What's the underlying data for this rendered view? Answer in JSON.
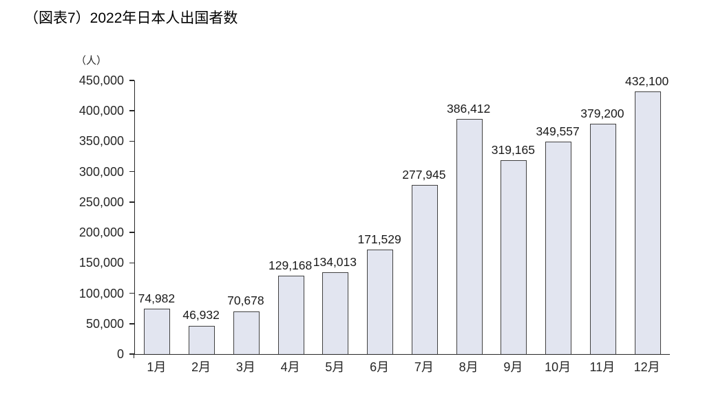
{
  "title": "（図表7）2022年日本人出国者数",
  "chart_data": {
    "type": "bar",
    "title": "（図表7）2022年日本人出国者数",
    "y_unit_label": "（人）",
    "xlabel": "",
    "ylabel": "（人）",
    "categories": [
      "1月",
      "2月",
      "3月",
      "4月",
      "5月",
      "6月",
      "7月",
      "8月",
      "9月",
      "10月",
      "11月",
      "12月"
    ],
    "values": [
      74982,
      46932,
      70678,
      129168,
      134013,
      171529,
      277945,
      386412,
      319165,
      349557,
      379200,
      432100
    ],
    "value_labels": [
      "74,982",
      "46,932",
      "70,678",
      "129,168",
      "134,013",
      "171,529",
      "277,945",
      "386,412",
      "319,165",
      "349,557",
      "379,200",
      "432,100"
    ],
    "ylim": [
      0,
      450000
    ],
    "y_tick_interval": 50000,
    "y_tick_labels": [
      "0",
      "50,000",
      "100,000",
      "150,000",
      "200,000",
      "250,000",
      "300,000",
      "350,000",
      "400,000",
      "450,000"
    ],
    "legend": "none",
    "grid": "off",
    "colors": {
      "bar_fill": "#e2e5f0",
      "bar_border": "#404040",
      "axis": "#262626",
      "text": "#1a1a1a",
      "background": "#ffffff"
    }
  }
}
